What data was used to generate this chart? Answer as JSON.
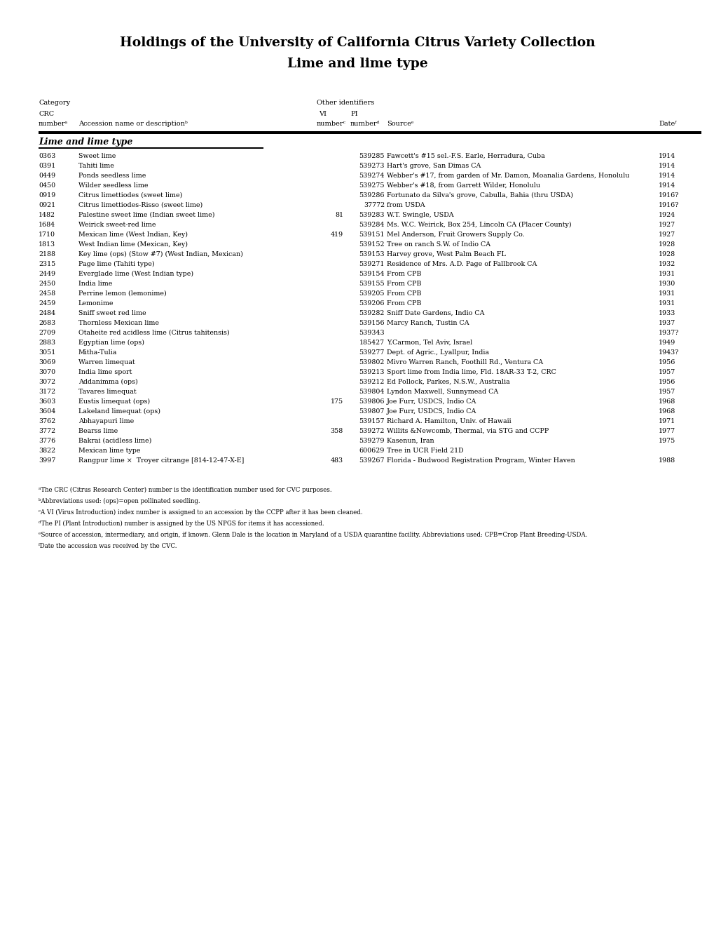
{
  "title_line1": "Holdings of the University of California Citrus Variety Collection",
  "title_line2": "Lime and lime type",
  "header_category": "Category",
  "header_other_id": "Other identifiers",
  "header_crc": "CRC",
  "header_vi": "VI",
  "header_pi": "PI",
  "header_crc_num": "numberᵃ",
  "header_accession": "Accession name or descriptionᵇ",
  "header_vi_num": "numberᶜ",
  "header_pi_num": "numberᵈ",
  "header_source": "Sourceᵉ",
  "header_date": "Dateᶠ",
  "section_label": "Lime and lime type",
  "rows": [
    {
      "crc": "0363",
      "name": "Sweet lime",
      "vi": "",
      "pi": "539285",
      "source": "Fawcett's #15 sel.-F.S. Earle, Herradura, Cuba",
      "date": "1914"
    },
    {
      "crc": "0391",
      "name": "Tahiti lime",
      "vi": "",
      "pi": "539273",
      "source": "Hart's grove, San Dimas CA",
      "date": "1914"
    },
    {
      "crc": "0449",
      "name": "Ponds seedless lime",
      "vi": "",
      "pi": "539274",
      "source": "Webber's #17, from garden of Mr. Damon, Moanalia Gardens, Honolulu",
      "date": "1914"
    },
    {
      "crc": "0450",
      "name": "Wilder seedless lime",
      "vi": "",
      "pi": "539275",
      "source": "Webber's #18, from Garrett Wilder, Honolulu",
      "date": "1914"
    },
    {
      "crc": "0919",
      "name": "Citrus limettiodes (sweet lime)",
      "vi": "",
      "pi": "539286",
      "source": "Fortunato da Silva's grove, Cabulla, Bahia (thru USDA)",
      "date": "1916?"
    },
    {
      "crc": "0921",
      "name": "Citrus limettiodes-Risso (sweet lime)",
      "vi": "",
      "pi": "37772",
      "source": "from USDA",
      "date": "1916?"
    },
    {
      "crc": "1482",
      "name": "Palestine sweet lime (Indian sweet lime)",
      "vi": "81",
      "pi": "539283",
      "source": "W.T. Swingle, USDA",
      "date": "1924"
    },
    {
      "crc": "1684",
      "name": "Weirick sweet-red lime",
      "vi": "",
      "pi": "539284",
      "source": "Ms. W.C. Weirick, Box 254, Lincoln CA (Placer County)",
      "date": "1927"
    },
    {
      "crc": "1710",
      "name": "Mexican lime (West Indian, Key)",
      "vi": "419",
      "pi": "539151",
      "source": "Mel Anderson, Fruit Growers Supply Co.",
      "date": "1927"
    },
    {
      "crc": "1813",
      "name": "West Indian lime (Mexican, Key)",
      "vi": "",
      "pi": "539152",
      "source": "Tree on ranch S.W. of Indio CA",
      "date": "1928"
    },
    {
      "crc": "2188",
      "name": "Key lime (ops) (Stow #7) (West Indian, Mexican)",
      "vi": "",
      "pi": "539153",
      "source": "Harvey grove, West Palm Beach FL",
      "date": "1928"
    },
    {
      "crc": "2315",
      "name": "Page lime (Tahiti type)",
      "vi": "",
      "pi": "539271",
      "source": "Residence of Mrs. A.D. Page of Fallbrook CA",
      "date": "1932"
    },
    {
      "crc": "2449",
      "name": "Everglade lime (West Indian type)",
      "vi": "",
      "pi": "539154",
      "source": "From CPB",
      "date": "1931"
    },
    {
      "crc": "2450",
      "name": "India lime",
      "vi": "",
      "pi": "539155",
      "source": "From CPB",
      "date": "1930"
    },
    {
      "crc": "2458",
      "name": "Perrine lemon (lemonime)",
      "vi": "",
      "pi": "539205",
      "source": "From CPB",
      "date": "1931"
    },
    {
      "crc": "2459",
      "name": "Lemonime",
      "vi": "",
      "pi": "539206",
      "source": "From CPB",
      "date": "1931"
    },
    {
      "crc": "2484",
      "name": "Sniff sweet red lime",
      "vi": "",
      "pi": "539282",
      "source": "Sniff Date Gardens, Indio CA",
      "date": "1933"
    },
    {
      "crc": "2683",
      "name": "Thornless Mexican lime",
      "vi": "",
      "pi": "539156",
      "source": "Marcy Ranch, Tustin CA",
      "date": "1937"
    },
    {
      "crc": "2709",
      "name": "Otaheite red acidless lime (Citrus tahitensis)",
      "vi": "",
      "pi": "539343",
      "source": "",
      "date": "1937?"
    },
    {
      "crc": "2883",
      "name": "Egyptian lime (ops)",
      "vi": "",
      "pi": "185427",
      "source": "Y.Carmon, Tel Aviv, Israel",
      "date": "1949"
    },
    {
      "crc": "3051",
      "name": "Mitha-Tulia",
      "vi": "",
      "pi": "539277",
      "source": "Dept. of Agric., Lyallpur, India",
      "date": "1943?"
    },
    {
      "crc": "3069",
      "name": "Warren limequat",
      "vi": "",
      "pi": "539802",
      "source": "Mivro Warren Ranch, Foothill Rd., Ventura CA",
      "date": "1956"
    },
    {
      "crc": "3070",
      "name": "India lime sport",
      "vi": "",
      "pi": "539213",
      "source": "Sport lime from India lime, Fld. 18AR-33 T-2, CRC",
      "date": "1957"
    },
    {
      "crc": "3072",
      "name": "Addanimma (ops)",
      "vi": "",
      "pi": "539212",
      "source": "Ed Pollock, Parkes, N.S.W., Australia",
      "date": "1956"
    },
    {
      "crc": "3172",
      "name": "Tavares limequat",
      "vi": "",
      "pi": "539804",
      "source": "Lyndon Maxwell, Sunnymead CA",
      "date": "1957"
    },
    {
      "crc": "3603",
      "name": "Eustis limequat (ops)",
      "vi": "175",
      "pi": "539806",
      "source": "Joe Furr, USDCS, Indio CA",
      "date": "1968"
    },
    {
      "crc": "3604",
      "name": "Lakeland limequat (ops)",
      "vi": "",
      "pi": "539807",
      "source": "Joe Furr, USDCS, Indio CA",
      "date": "1968"
    },
    {
      "crc": "3762",
      "name": "Abhayapuri lime",
      "vi": "",
      "pi": "539157",
      "source": "Richard A. Hamilton, Univ. of Hawaii",
      "date": "1971"
    },
    {
      "crc": "3772",
      "name": "Bearss lime",
      "vi": "358",
      "pi": "539272",
      "source": "Willits &Newcomb, Thermal, via STG and CCPP",
      "date": "1977"
    },
    {
      "crc": "3776",
      "name": "Bakrai (acidless lime)",
      "vi": "",
      "pi": "539279",
      "source": "Kasenun, Iran",
      "date": "1975"
    },
    {
      "crc": "3822",
      "name": "Mexican lime type",
      "vi": "",
      "pi": "600629",
      "source": "Tree in UCR Field 21D",
      "date": ""
    },
    {
      "crc": "3997",
      "name": "Rangpur lime ×  Troyer citrange [814-12-47-X-E]",
      "vi": "483",
      "pi": "539267",
      "source": "Florida - Budwood Registration Program, Winter Haven",
      "date": "1988"
    }
  ],
  "footnotes": [
    "ᵃThe CRC (Citrus Research Center) number is the identification number used for CVC purposes.",
    "ᵇAbbreviations used: (ops)=open pollinated seedling.",
    "ᶜA VI (Virus Introduction) index number is assigned to an accession by the CCPP after it has been cleaned.",
    "ᵈThe PI (Plant Introduction) number is assigned by the US NPGS for items it has accessioned.",
    "ᵉSource of accession, intermediary, and origin, if known. Glenn Dale is the location in Maryland of a USDA quarantine facility. Abbreviations used: CPB=Crop Plant Breeding-USDA.",
    "ᶠDate the accession was received by the CVC."
  ],
  "bg_color": "#ffffff",
  "text_color": "#000000",
  "title_fontsize": 13.5,
  "header_fontsize": 7.0,
  "row_fontsize": 6.8,
  "footnote_fontsize": 6.2
}
